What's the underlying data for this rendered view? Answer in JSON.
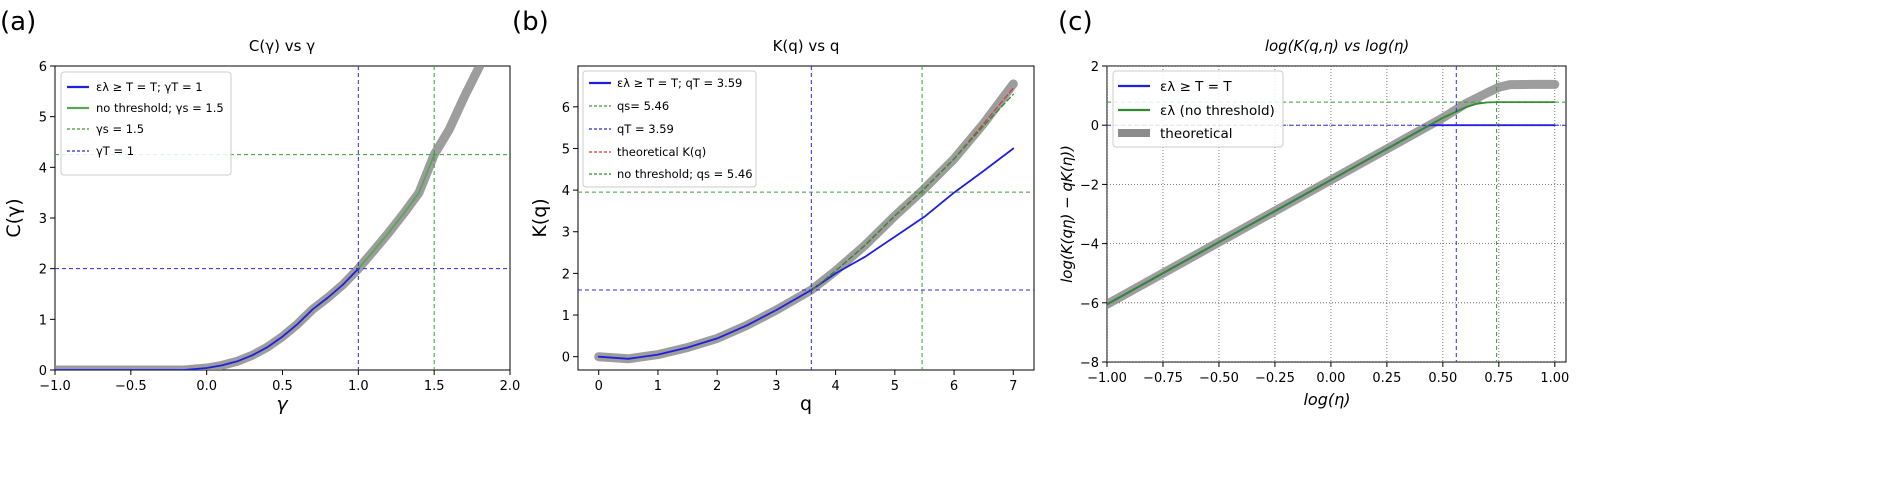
{
  "panels": [
    {
      "label": "(a)",
      "chart_data": {
        "type": "line",
        "title": "C(γ) vs γ",
        "xlabel": "γ",
        "ylabel": "C(γ)",
        "xlim": [
          -1.0,
          2.0
        ],
        "ylim": [
          0,
          6
        ],
        "xticks": [
          -1.0,
          -0.5,
          0.0,
          0.5,
          1.0,
          1.5,
          2.0
        ],
        "xtick_labels": [
          "−1.0",
          "−0.5",
          "0.0",
          "0.5",
          "1.0",
          "1.5",
          "2.0"
        ],
        "yticks": [
          0,
          1,
          2,
          3,
          4,
          5,
          6
        ],
        "ytick_labels": [
          "0",
          "1",
          "2",
          "3",
          "4",
          "5",
          "6"
        ],
        "grid": false,
        "legend_position": "top-left",
        "series": [
          {
            "name": "theoretical",
            "legend": false,
            "color": "#8c8c8c",
            "style": "thick",
            "x": [
              -1.0,
              -0.75,
              -0.5,
              -0.25,
              -0.15,
              0.0,
              0.1,
              0.2,
              0.3,
              0.4,
              0.5,
              0.6,
              0.7,
              0.8,
              0.9,
              1.0,
              1.1,
              1.2,
              1.3,
              1.4,
              1.5,
              1.6,
              1.7,
              1.8
            ],
            "y": [
              0.0,
              0.0,
              0.0,
              0.0,
              0.0,
              0.04,
              0.09,
              0.17,
              0.29,
              0.45,
              0.66,
              0.91,
              1.2,
              1.43,
              1.69,
              2.0,
              2.35,
              2.71,
              3.09,
              3.5,
              4.25,
              4.75,
              5.4,
              6.0
            ]
          },
          {
            "name": "ελ ≥ T = T;  γT = 1",
            "color": "#1f1fe0",
            "style": "solid",
            "x": [
              -1.0,
              -0.75,
              -0.5,
              -0.25,
              -0.15,
              0.0,
              0.1,
              0.2,
              0.3,
              0.4,
              0.5,
              0.6,
              0.7,
              0.8,
              0.9,
              1.0
            ],
            "y": [
              0.0,
              0.0,
              0.0,
              0.0,
              0.0,
              0.04,
              0.09,
              0.17,
              0.29,
              0.45,
              0.66,
              0.91,
              1.2,
              1.43,
              1.69,
              2.0
            ]
          },
          {
            "name": "no threshold; γs = 1.5",
            "color": "#5aa55a",
            "style": "solid",
            "x": [
              1.0,
              1.1,
              1.2,
              1.3,
              1.4,
              1.5
            ],
            "y": [
              2.0,
              2.35,
              2.71,
              3.09,
              3.5,
              4.25
            ]
          },
          {
            "name": "γs = 1.5",
            "color": "#3a9a3a",
            "style": "dashed",
            "kind": "vline",
            "value": 1.5
          },
          {
            "name": "γT = 1",
            "color": "#2b2bd8",
            "style": "dashed",
            "kind": "vline",
            "value": 1.0
          },
          {
            "name": "",
            "legend": false,
            "color": "#3a9a3a",
            "style": "dashed",
            "kind": "hline",
            "value": 4.25
          },
          {
            "name": "",
            "legend": false,
            "color": "#2b2bd8",
            "style": "dashed",
            "kind": "hline",
            "value": 2.0
          }
        ]
      }
    },
    {
      "label": "(b)",
      "chart_data": {
        "type": "line",
        "title": "K(q) vs q",
        "xlabel": "q",
        "ylabel": "K(q)",
        "xlim": [
          -0.35,
          7.35
        ],
        "ylim": [
          -0.32,
          6.98
        ],
        "xticks": [
          0,
          1,
          2,
          3,
          4,
          5,
          6,
          7
        ],
        "xtick_labels": [
          "0",
          "1",
          "2",
          "3",
          "4",
          "5",
          "6",
          "7"
        ],
        "yticks": [
          0,
          1,
          2,
          3,
          4,
          5,
          6
        ],
        "ytick_labels": [
          "0",
          "1",
          "2",
          "3",
          "4",
          "5",
          "6"
        ],
        "grid": false,
        "legend_position": "top-left",
        "series": [
          {
            "name": "theoretical",
            "legend": false,
            "color": "#8c8c8c",
            "style": "thick",
            "x": [
              0,
              0.5,
              1,
              1.5,
              2,
              2.5,
              3,
              3.59,
              4,
              4.5,
              5,
              5.46,
              6,
              6.5,
              7
            ],
            "y": [
              0.0,
              -0.05,
              0.05,
              0.22,
              0.44,
              0.75,
              1.12,
              1.6,
              2.06,
              2.68,
              3.38,
              3.98,
              4.75,
              5.6,
              6.55
            ]
          },
          {
            "name": "ελ ≥ T = T;  qT = 3.59",
            "color": "#1f1fe0",
            "style": "solid",
            "x": [
              0,
              0.5,
              1,
              1.5,
              2,
              2.5,
              3,
              3.59,
              4,
              4.5,
              5,
              5.5,
              6,
              6.5,
              7
            ],
            "y": [
              0.0,
              -0.05,
              0.05,
              0.22,
              0.44,
              0.75,
              1.12,
              1.6,
              2.0,
              2.4,
              2.88,
              3.36,
              3.94,
              4.46,
              5.0
            ]
          },
          {
            "name": "qs= 5.46",
            "color": "#3a9a3a",
            "style": "dashed",
            "kind": "vline",
            "value": 5.46
          },
          {
            "name": "qT = 3.59",
            "color": "#2b2bd8",
            "style": "dashed",
            "kind": "vline",
            "value": 3.59
          },
          {
            "name": "theoretical K(q)",
            "color": "#d43a3a",
            "style": "dashed",
            "x": [
              3.6,
              4,
              4.5,
              5,
              5.46,
              6,
              6.5,
              7
            ],
            "y": [
              1.6,
              2.06,
              2.68,
              3.38,
              3.98,
              4.75,
              5.6,
              6.45
            ]
          },
          {
            "name": "no threshold; qs = 5.46",
            "color": "#2e8b2e",
            "style": "dashed",
            "x": [
              3.6,
              4,
              4.5,
              5,
              5.46,
              6,
              6.5,
              7
            ],
            "y": [
              1.6,
              2.06,
              2.68,
              3.38,
              3.98,
              4.75,
              5.55,
              6.3
            ]
          },
          {
            "name": "",
            "legend": false,
            "color": "#3a9a3a",
            "style": "dashed",
            "kind": "hline",
            "value": 3.95
          },
          {
            "name": "",
            "legend": false,
            "color": "#2b2bd8",
            "style": "dashed",
            "kind": "hline",
            "value": 1.6
          }
        ]
      }
    },
    {
      "label": "(c)",
      "chart_data": {
        "type": "line",
        "title": "log(K(q,η) vs log(η)",
        "xlabel": "log(η)",
        "ylabel": "log(K(qη) − qK(η))",
        "xlim": [
          -1.0,
          1.05
        ],
        "ylim": [
          -8,
          2
        ],
        "xticks": [
          -1.0,
          -0.75,
          -0.5,
          -0.25,
          0.0,
          0.25,
          0.5,
          0.75,
          1.0
        ],
        "xtick_labels": [
          "−1.00",
          "−0.75",
          "−0.50",
          "−0.25",
          "0.00",
          "0.25",
          "0.50",
          "0.75",
          "1.00"
        ],
        "yticks": [
          -8,
          -6,
          -4,
          -2,
          0,
          2
        ],
        "ytick_labels": [
          "−8",
          "−6",
          "−4",
          "−2",
          "0",
          "2"
        ],
        "grid": true,
        "legend_position": "top-left",
        "series": [
          {
            "name": "theoretical",
            "color": "#8c8c8c",
            "style": "thick",
            "x": [
              -1.0,
              -0.5,
              0.0,
              0.25,
              0.5,
              0.6,
              0.7,
              0.75,
              0.8,
              0.9,
              1.0
            ],
            "y": [
              -6.05,
              -3.95,
              -1.85,
              -0.8,
              0.25,
              0.72,
              1.1,
              1.28,
              1.37,
              1.38,
              1.38
            ]
          },
          {
            "name": "ελ ≥ T = T",
            "color": "#1f1fe0",
            "style": "solid",
            "x": [
              -1.0,
              -0.5,
              0.0,
              0.25,
              0.44,
              0.5,
              0.55,
              0.6,
              0.7,
              0.8,
              0.9,
              1.0
            ],
            "y": [
              -6.05,
              -3.95,
              -1.85,
              -0.8,
              0.0,
              0.0,
              0.0,
              0.0,
              0.0,
              0.0,
              0.0,
              0.0
            ]
          },
          {
            "name": "ελ (no threshold)",
            "color": "#2e8b2e",
            "style": "solid",
            "x": [
              -1.0,
              -0.5,
              0.0,
              0.25,
              0.5,
              0.6,
              0.65,
              0.7,
              0.75,
              0.8,
              0.9,
              1.0
            ],
            "y": [
              -6.05,
              -3.95,
              -1.85,
              -0.8,
              0.25,
              0.6,
              0.72,
              0.77,
              0.78,
              0.78,
              0.78,
              0.78
            ]
          },
          {
            "name": "",
            "legend": false,
            "color": "#3a9a3a",
            "style": "dashed",
            "kind": "hline",
            "value": 0.78
          },
          {
            "name": "",
            "legend": false,
            "color": "#2b2bd8",
            "style": "dashed",
            "kind": "hline",
            "value": 0.0
          },
          {
            "name": "",
            "legend": false,
            "color": "#3a9a3a",
            "style": "dashed",
            "kind": "vline",
            "value": 0.74
          },
          {
            "name": "",
            "legend": false,
            "color": "#2b2bd8",
            "style": "dashed",
            "kind": "vline",
            "value": 0.56
          }
        ]
      }
    }
  ]
}
